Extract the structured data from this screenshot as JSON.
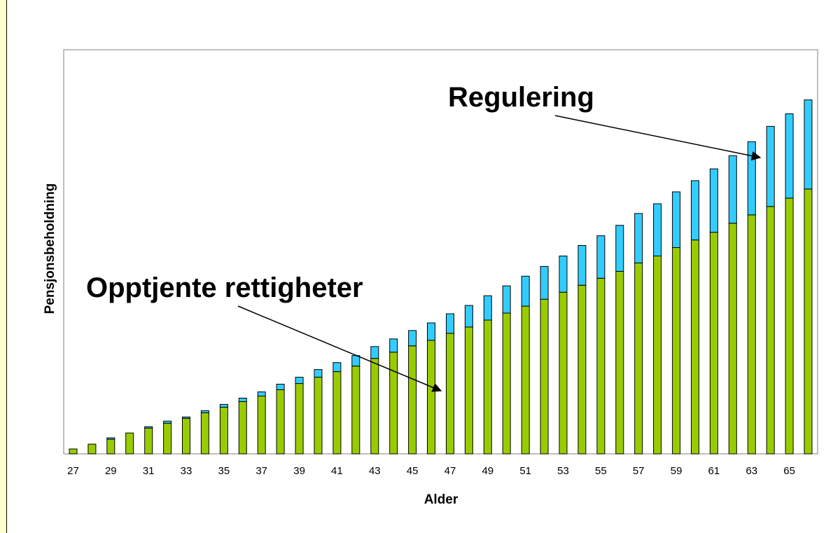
{
  "chart_data": {
    "type": "bar",
    "stacked": true,
    "xlabel": "Alder",
    "ylabel": "Pensjonsbeholdning",
    "categories": [
      27,
      28,
      29,
      30,
      31,
      32,
      33,
      34,
      35,
      36,
      37,
      38,
      39,
      40,
      41,
      42,
      43,
      44,
      45,
      46,
      47,
      48,
      49,
      50,
      51,
      52,
      53,
      54,
      55,
      56,
      57,
      58,
      59,
      60,
      61,
      62,
      63,
      64,
      65,
      66
    ],
    "tick_labels": [
      "27",
      "29",
      "31",
      "33",
      "35",
      "37",
      "39",
      "41",
      "43",
      "45",
      "47",
      "49",
      "51",
      "53",
      "55",
      "57",
      "59",
      "61",
      "63",
      "65"
    ],
    "ylim": [
      0,
      580
    ],
    "grid": false,
    "series": [
      {
        "role": "base",
        "color": "#99cc00",
        "values": [
          7,
          14,
          21,
          30,
          37,
          44,
          51,
          59,
          67,
          75,
          83,
          92,
          101,
          110,
          118,
          126,
          137,
          146,
          155,
          163,
          173,
          182,
          192,
          202,
          212,
          222,
          232,
          242,
          252,
          262,
          274,
          284,
          296,
          307,
          318,
          331,
          343,
          355,
          367,
          380
        ]
      },
      {
        "role": "stacked",
        "color": "#33ccff",
        "values": [
          0,
          0,
          2,
          0,
          2,
          3,
          2,
          3,
          4,
          5,
          6,
          8,
          9,
          11,
          13,
          15,
          17,
          19,
          22,
          25,
          28,
          31,
          35,
          39,
          43,
          47,
          52,
          57,
          61,
          66,
          71,
          75,
          80,
          85,
          91,
          97,
          105,
          115,
          121,
          128
        ]
      }
    ],
    "annotations": [
      {
        "text": "Regulering"
      },
      {
        "text": "Opptjente rettigheter"
      }
    ]
  }
}
